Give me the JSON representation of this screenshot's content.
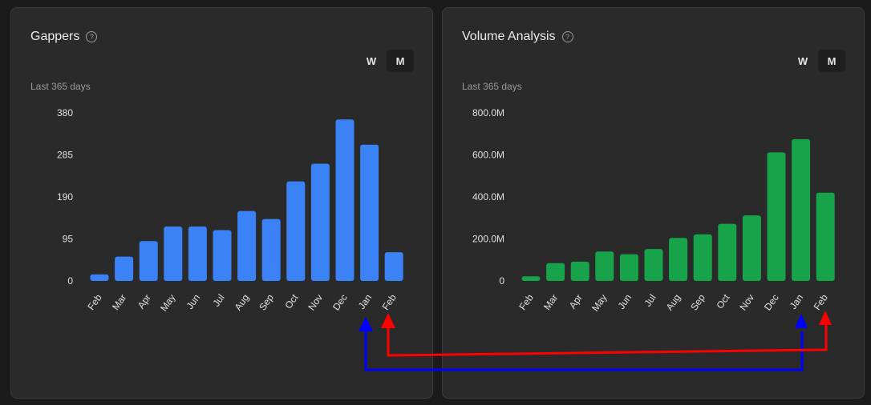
{
  "colors": {
    "gappers_bar": "#3b82f6",
    "volume_bar": "#16a34a",
    "annotation_blue": "#0000ff",
    "annotation_red": "#ff0000"
  },
  "gappers": {
    "title": "Gappers",
    "help_icon": "help-circle-icon",
    "toggle_w": "W",
    "toggle_m": "M",
    "active_toggle": "M",
    "subtitle": "Last 365 days"
  },
  "volume": {
    "title": "Volume Analysis",
    "help_icon": "help-circle-icon",
    "toggle_w": "W",
    "toggle_m": "M",
    "active_toggle": "M",
    "subtitle": "Last 365 days"
  },
  "chart_data": [
    {
      "type": "bar",
      "title": "Gappers",
      "categories": [
        "Feb",
        "Mar",
        "Apr",
        "May",
        "Jun",
        "Jul",
        "Aug",
        "Sep",
        "Oct",
        "Nov",
        "Dec",
        "Jan",
        "Feb"
      ],
      "values": [
        15,
        55,
        90,
        123,
        123,
        115,
        158,
        140,
        225,
        265,
        365,
        308,
        65
      ],
      "yticks": [
        0,
        95,
        190,
        285,
        380
      ],
      "ytick_labels": [
        "0",
        "95",
        "190",
        "285",
        "380"
      ],
      "ylim": [
        0,
        380
      ],
      "grid": false,
      "xlabel": "",
      "ylabel": ""
    },
    {
      "type": "bar",
      "title": "Volume Analysis",
      "categories": [
        "Feb",
        "Mar",
        "Apr",
        "May",
        "Jun",
        "Jul",
        "Aug",
        "Sep",
        "Oct",
        "Nov",
        "Dec",
        "Jan",
        "Feb"
      ],
      "values": [
        22000000,
        85000000,
        92000000,
        140000000,
        127000000,
        152000000,
        205000000,
        222000000,
        272000000,
        312000000,
        612000000,
        675000000,
        420000000
      ],
      "yticks": [
        0,
        200000000,
        400000000,
        600000000,
        800000000
      ],
      "ytick_labels": [
        "0",
        "200.0M",
        "400.0M",
        "600.0M",
        "800.0M"
      ],
      "ylim": [
        0,
        800000000
      ],
      "grid": false,
      "xlabel": "",
      "ylabel": ""
    }
  ],
  "annotations": [
    {
      "from": "gappers Jan",
      "to": "volume Jan",
      "color": "blue"
    },
    {
      "from": "gappers Feb",
      "to": "volume Feb",
      "color": "red"
    }
  ]
}
